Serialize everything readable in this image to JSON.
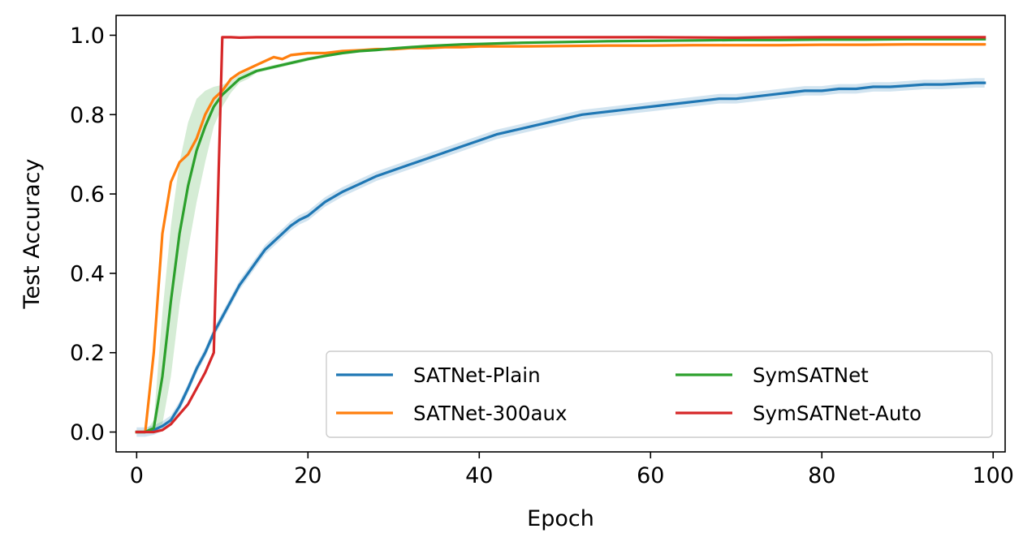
{
  "chart_data": {
    "type": "line",
    "xlabel": "Epoch",
    "ylabel": "Test Accuracy",
    "xlim": [
      -2.4,
      101.4
    ],
    "ylim": [
      -0.05,
      1.05
    ],
    "xticks": [
      0,
      20,
      40,
      60,
      80,
      100
    ],
    "xtick_labels": [
      "0",
      "20",
      "40",
      "60",
      "80",
      "100"
    ],
    "yticks": [
      0.0,
      0.2,
      0.4,
      0.6,
      0.8,
      1.0
    ],
    "ytick_labels": [
      "0.0",
      "0.2",
      "0.4",
      "0.6",
      "0.8",
      "1.0"
    ],
    "grid": false,
    "legend": {
      "location": "lower-right",
      "columns": 2
    },
    "series": [
      {
        "name": "SATNet-Plain",
        "color": "#1f77b4",
        "x": [
          0,
          1,
          2,
          3,
          4,
          5,
          6,
          7,
          8,
          9,
          10,
          11,
          12,
          13,
          14,
          15,
          16,
          17,
          18,
          19,
          20,
          22,
          24,
          26,
          28,
          30,
          32,
          34,
          36,
          38,
          40,
          42,
          44,
          46,
          48,
          50,
          52,
          54,
          56,
          58,
          60,
          62,
          64,
          66,
          68,
          70,
          72,
          74,
          76,
          78,
          80,
          82,
          84,
          86,
          88,
          90,
          92,
          94,
          96,
          98,
          99
        ],
        "y": [
          0.0,
          0.0,
          0.005,
          0.015,
          0.03,
          0.065,
          0.11,
          0.16,
          0.2,
          0.25,
          0.29,
          0.33,
          0.37,
          0.4,
          0.43,
          0.46,
          0.48,
          0.5,
          0.52,
          0.535,
          0.545,
          0.58,
          0.605,
          0.625,
          0.645,
          0.66,
          0.675,
          0.69,
          0.705,
          0.72,
          0.735,
          0.75,
          0.76,
          0.77,
          0.78,
          0.79,
          0.8,
          0.805,
          0.81,
          0.815,
          0.82,
          0.825,
          0.83,
          0.835,
          0.84,
          0.84,
          0.845,
          0.85,
          0.855,
          0.86,
          0.86,
          0.865,
          0.865,
          0.87,
          0.87,
          0.873,
          0.876,
          0.876,
          0.878,
          0.88,
          0.88
        ],
        "band": 0.012
      },
      {
        "name": "SATNet-300aux",
        "color": "#ff7f0e",
        "x": [
          0,
          1,
          2,
          3,
          4,
          5,
          6,
          7,
          8,
          9,
          10,
          11,
          12,
          13,
          14,
          15,
          16,
          17,
          18,
          20,
          22,
          24,
          26,
          28,
          30,
          32,
          34,
          36,
          38,
          40,
          45,
          50,
          55,
          60,
          65,
          70,
          75,
          80,
          85,
          90,
          95,
          99
        ],
        "y": [
          0.0,
          0.0,
          0.2,
          0.5,
          0.63,
          0.68,
          0.7,
          0.74,
          0.8,
          0.84,
          0.86,
          0.89,
          0.905,
          0.915,
          0.925,
          0.935,
          0.945,
          0.94,
          0.95,
          0.955,
          0.955,
          0.96,
          0.962,
          0.965,
          0.965,
          0.968,
          0.968,
          0.97,
          0.97,
          0.972,
          0.972,
          0.973,
          0.974,
          0.974,
          0.975,
          0.975,
          0.975,
          0.976,
          0.976,
          0.977,
          0.977,
          0.977
        ],
        "band": 0.004
      },
      {
        "name": "SymSATNet",
        "color": "#2ca02c",
        "x": [
          0,
          1,
          2,
          3,
          4,
          5,
          6,
          7,
          8,
          9,
          10,
          11,
          12,
          13,
          14,
          15,
          16,
          18,
          20,
          22,
          24,
          26,
          28,
          30,
          32,
          34,
          36,
          38,
          40,
          45,
          50,
          55,
          60,
          65,
          70,
          75,
          80,
          85,
          90,
          95,
          99
        ],
        "y": [
          0.0,
          0.0,
          0.01,
          0.14,
          0.33,
          0.5,
          0.62,
          0.71,
          0.77,
          0.82,
          0.85,
          0.87,
          0.89,
          0.9,
          0.91,
          0.915,
          0.92,
          0.93,
          0.94,
          0.948,
          0.955,
          0.96,
          0.963,
          0.967,
          0.97,
          0.973,
          0.975,
          0.977,
          0.978,
          0.981,
          0.983,
          0.985,
          0.986,
          0.987,
          0.988,
          0.988,
          0.989,
          0.989,
          0.99,
          0.99,
          0.99
        ],
        "band_upper": [
          0.0,
          0.0,
          0.03,
          0.3,
          0.52,
          0.68,
          0.78,
          0.84,
          0.86,
          0.87,
          0.875,
          0.885,
          0.9,
          0.91,
          0.915,
          0.92,
          0.925,
          0.935,
          0.945,
          0.952,
          0.958,
          0.963,
          0.966,
          0.97,
          0.973,
          0.976,
          0.978,
          0.98,
          0.981,
          0.984,
          0.986,
          0.988,
          0.989,
          0.99,
          0.991,
          0.991,
          0.992,
          0.992,
          0.993,
          0.993,
          0.993
        ],
        "band_lower": [
          0.0,
          0.0,
          0.0,
          0.02,
          0.14,
          0.32,
          0.46,
          0.58,
          0.68,
          0.77,
          0.82,
          0.855,
          0.88,
          0.89,
          0.905,
          0.91,
          0.915,
          0.925,
          0.935,
          0.944,
          0.952,
          0.957,
          0.96,
          0.964,
          0.967,
          0.97,
          0.972,
          0.974,
          0.975,
          0.978,
          0.98,
          0.982,
          0.983,
          0.984,
          0.985,
          0.985,
          0.986,
          0.986,
          0.987,
          0.987,
          0.987
        ]
      },
      {
        "name": "SymSATNet-Auto",
        "color": "#d62728",
        "x": [
          0,
          1,
          2,
          3,
          4,
          5,
          6,
          7,
          8,
          9,
          10,
          11,
          12,
          14,
          20,
          30,
          40,
          50,
          60,
          70,
          80,
          90,
          99
        ],
        "y": [
          0.0,
          0.0,
          0.0,
          0.005,
          0.02,
          0.045,
          0.07,
          0.11,
          0.15,
          0.2,
          0.995,
          0.995,
          0.994,
          0.995,
          0.995,
          0.995,
          0.995,
          0.995,
          0.995,
          0.994,
          0.995,
          0.995,
          0.995
        ],
        "band": 0.002
      }
    ]
  }
}
